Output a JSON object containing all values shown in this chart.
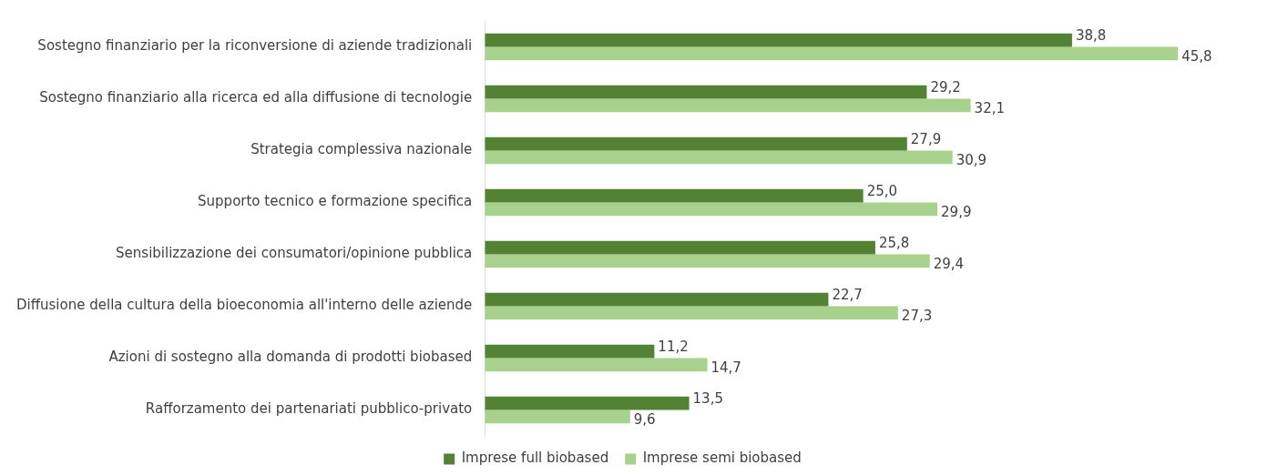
{
  "chart_data": {
    "type": "bar",
    "orientation": "horizontal",
    "categories": [
      "Sostegno finanziario per la riconversione di aziende tradizionali",
      "Sostegno finanziario alla ricerca ed alla diffusione di tecnologie",
      "Strategia complessiva nazionale",
      "Supporto tecnico e formazione specifica",
      "Sensibilizzazione dei consumatori/opinione pubblica",
      "Diffusione della cultura della bioeconomia all'interno delle aziende",
      "Azioni di sostegno alla domanda di prodotti biobased",
      "Rafforzamento dei partenariati pubblico-privato"
    ],
    "series": [
      {
        "name": "Imprese full biobased",
        "color": "#548235",
        "values": [
          38.8,
          29.2,
          27.9,
          25.0,
          25.8,
          22.7,
          11.2,
          13.5
        ],
        "value_labels": [
          "38,8",
          "29,2",
          "27,9",
          "25,0",
          "25,8",
          "22,7",
          "11,2",
          "13,5"
        ]
      },
      {
        "name": "Imprese semi biobased",
        "color": "#a9d18e",
        "values": [
          45.8,
          32.1,
          30.9,
          29.9,
          29.4,
          27.3,
          14.7,
          9.6
        ],
        "value_labels": [
          "45,8",
          "32,1",
          "30,9",
          "29,9",
          "29,4",
          "27,3",
          "14,7",
          "9,6"
        ]
      }
    ],
    "tick_labels": "y",
    "grid": false,
    "legend": "bottom"
  }
}
